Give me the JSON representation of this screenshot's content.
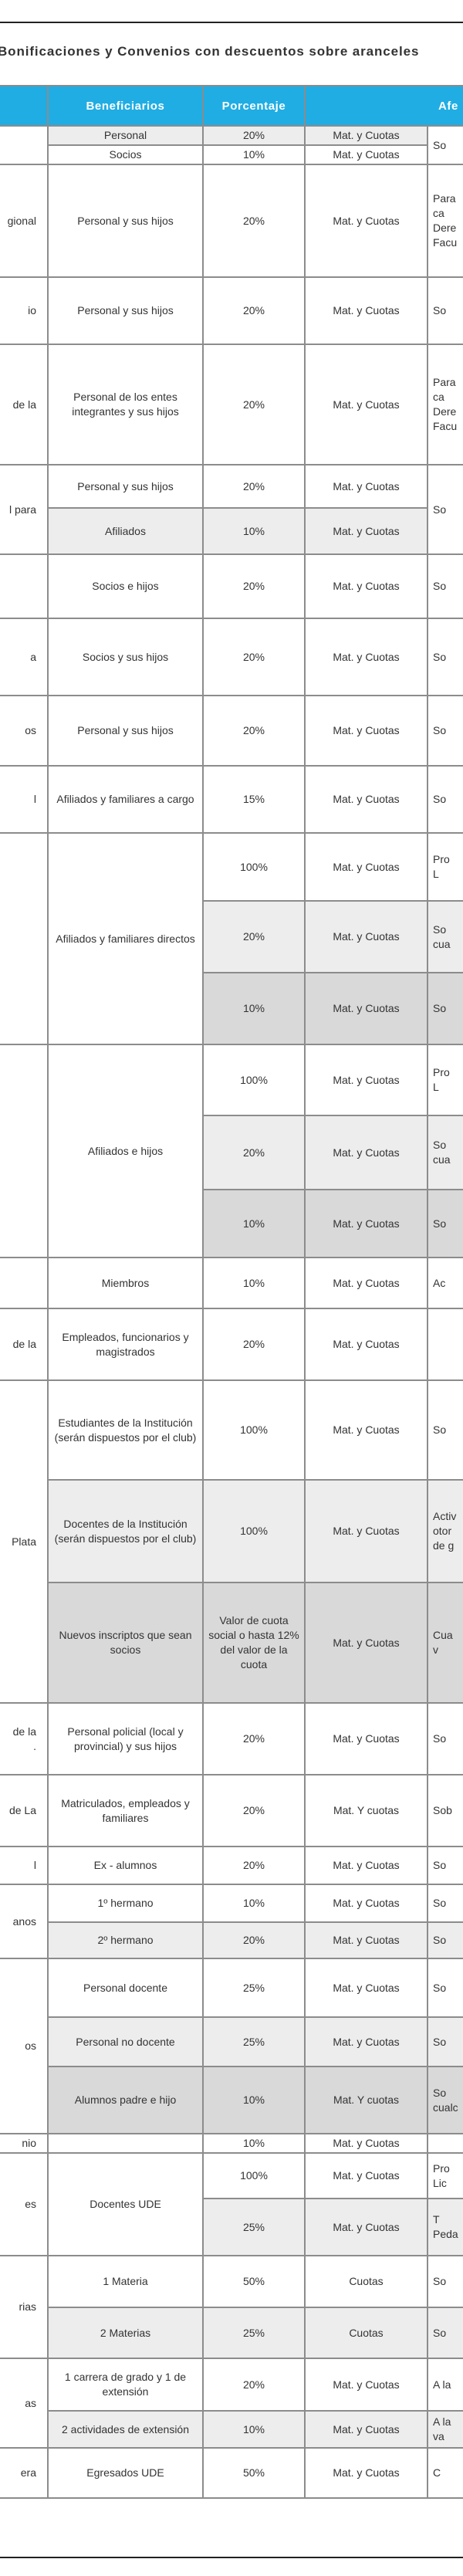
{
  "title": "Bonificaciones y Convenios con descuentos sobre aranceles",
  "colors": {
    "header_bg": "#20ade3",
    "header_text": "#ffffff",
    "light": "#ededed",
    "dark": "#d9d9d9",
    "white": "#ffffff",
    "border": "#8c8c8c"
  },
  "table": {
    "headers": [
      "",
      "Beneficiarios",
      "Porcentaje",
      "Afe"
    ],
    "groups": [
      {
        "entity": "",
        "shades": [
          "light",
          "white"
        ],
        "beneficiaries": [
          {
            "text": "Personal",
            "span": 1
          },
          {
            "text": "Socios",
            "span": 1
          }
        ],
        "percent": [
          "20%",
          "10%"
        ],
        "applies": [
          "Mat. y Cuotas",
          "Mat. y Cuotas"
        ],
        "afecta": [
          {
            "text": "So",
            "span": 2
          }
        ]
      },
      {
        "entity": "gional",
        "shades": [
          "white"
        ],
        "beneficiaries": [
          {
            "text": "Personal y sus hijos",
            "span": 1
          }
        ],
        "percent": [
          "20%"
        ],
        "applies": [
          "Mat. y Cuotas"
        ],
        "afecta": [
          {
            "text": "Para\nca\nDere\nFacu",
            "span": 1
          }
        ]
      },
      {
        "entity": "io",
        "shades": [
          "white"
        ],
        "beneficiaries": [
          {
            "text": "Personal y sus hijos",
            "span": 1
          }
        ],
        "percent": [
          "20%"
        ],
        "applies": [
          "Mat. y Cuotas"
        ],
        "afecta": [
          {
            "text": "So\n",
            "span": 1
          }
        ]
      },
      {
        "entity": "de la",
        "shades": [
          "white"
        ],
        "beneficiaries": [
          {
            "text": "Personal de los entes integrantes y sus hijos",
            "span": 1
          }
        ],
        "percent": [
          "20%"
        ],
        "applies": [
          "Mat. y Cuotas"
        ],
        "afecta": [
          {
            "text": "Para\nca\nDere\nFacu",
            "span": 1
          }
        ]
      },
      {
        "entity": "l para",
        "shades": [
          "white",
          "light"
        ],
        "beneficiaries": [
          {
            "text": "Personal y sus hijos",
            "span": 1
          },
          {
            "text": "Afiliados",
            "span": 1
          }
        ],
        "percent": [
          "20%",
          "10%"
        ],
        "applies": [
          "Mat. y   Cuotas",
          "Mat. y   Cuotas"
        ],
        "afecta": [
          {
            "text": "So",
            "span": 2
          }
        ]
      },
      {
        "entity": "",
        "shades": [
          "white"
        ],
        "beneficiaries": [
          {
            "text": "Socios e hijos",
            "span": 1
          }
        ],
        "percent": [
          "20%"
        ],
        "applies": [
          "Mat. y Cuotas"
        ],
        "afecta": [
          {
            "text": "So\n",
            "span": 1
          }
        ]
      },
      {
        "entity": "a",
        "shades": [
          "white"
        ],
        "beneficiaries": [
          {
            "text": "Socios y sus hijos",
            "span": 1
          }
        ],
        "percent": [
          "20%"
        ],
        "applies": [
          "Mat. y Cuotas"
        ],
        "afecta": [
          {
            "text": "So\n",
            "span": 1
          }
        ]
      },
      {
        "entity": "os",
        "shades": [
          "white"
        ],
        "beneficiaries": [
          {
            "text": "Personal y sus hijos",
            "span": 1
          }
        ],
        "percent": [
          "20%"
        ],
        "applies": [
          "Mat. y Cuotas"
        ],
        "afecta": [
          {
            "text": "So\n",
            "span": 1
          }
        ]
      },
      {
        "entity": "l",
        "shades": [
          "white"
        ],
        "beneficiaries": [
          {
            "text": "Afiliados y familiares a cargo",
            "span": 1
          }
        ],
        "percent": [
          "15%"
        ],
        "applies": [
          "Mat. y Cuotas"
        ],
        "afecta": [
          {
            "text": "So\n",
            "span": 1
          }
        ]
      },
      {
        "entity": "",
        "shades": [
          "white",
          "light",
          "dark"
        ],
        "beneficiaries": [
          {
            "text": "Afiliados y   familiares directos",
            "span": 3
          }
        ],
        "percent": [
          "100%",
          "20%",
          "10%"
        ],
        "applies": [
          "Mat. y Cuotas",
          "Mat. y Cuotas",
          "Mat. y Cuotas"
        ],
        "afecta": [
          {
            "text": "Pro\nL",
            "span": 1
          },
          {
            "text": "So\ncua",
            "span": 1
          },
          {
            "text": "So",
            "span": 1
          }
        ]
      },
      {
        "entity": "",
        "shades": [
          "white",
          "light",
          "dark"
        ],
        "beneficiaries": [
          {
            "text": "Afiliados e hijos",
            "span": 3
          }
        ],
        "percent": [
          "100%",
          "20%",
          "10%"
        ],
        "applies": [
          "Mat. y Cuotas",
          "Mat. y Cuotas",
          "Mat. y Cuotas"
        ],
        "afecta": [
          {
            "text": "Pro\nL",
            "span": 1
          },
          {
            "text": "So\ncua",
            "span": 1
          },
          {
            "text": "So",
            "span": 1
          }
        ]
      },
      {
        "entity": "",
        "shades": [
          "white"
        ],
        "beneficiaries": [
          {
            "text": "Miembros",
            "span": 1
          }
        ],
        "percent": [
          "10%"
        ],
        "applies": [
          "Mat. y Cuotas"
        ],
        "afecta": [
          {
            "text": "Ac",
            "span": 1
          }
        ]
      },
      {
        "entity": "de la",
        "shades": [
          "white"
        ],
        "beneficiaries": [
          {
            "text": "Empleados, funcionarios y magistrados",
            "span": 1
          }
        ],
        "percent": [
          "20%"
        ],
        "applies": [
          "Mat. y Cuotas"
        ],
        "afecta": [
          {
            "text": "",
            "span": 1
          }
        ]
      },
      {
        "entity": "Plata",
        "shades": [
          "white",
          "light",
          "dark"
        ],
        "beneficiaries": [
          {
            "text": "Estudiantes de la Institución (serán dispuestos por el club)",
            "span": 1
          },
          {
            "text": "Docentes de la Institución (serán dispuestos por el club)",
            "span": 1
          },
          {
            "text": "Nuevos inscriptos que sean socios",
            "span": 1
          }
        ],
        "percent": [
          "100%",
          "100%",
          "Valor de cuota social o hasta 12% del valor de la cuota"
        ],
        "applies": [
          "Mat. y Cuotas",
          "Mat. y Cuotas",
          "Mat. y Cuotas"
        ],
        "afecta": [
          {
            "text": "So",
            "span": 1
          },
          {
            "text": "Activ\notor\nde g",
            "span": 1
          },
          {
            "text": "Cua\nv",
            "span": 1
          }
        ]
      },
      {
        "entity": "de la\n.",
        "shades": [
          "white"
        ],
        "beneficiaries": [
          {
            "text": "Personal policial (local y provincial) y sus hijos",
            "span": 1
          }
        ],
        "percent": [
          "20%"
        ],
        "applies": [
          "Mat. y Cuotas"
        ],
        "afecta": [
          {
            "text": "So\n",
            "span": 1
          }
        ]
      },
      {
        "entity": "de La",
        "shades": [
          "white"
        ],
        "beneficiaries": [
          {
            "text": "Matriculados, empleados y familiares",
            "span": 1
          }
        ],
        "percent": [
          "20%"
        ],
        "applies": [
          "Mat. Y cuotas"
        ],
        "afecta": [
          {
            "text": "Sob",
            "span": 1
          }
        ]
      },
      {
        "entity": "l",
        "shades": [
          "white"
        ],
        "beneficiaries": [
          {
            "text": "Ex - alumnos",
            "span": 1
          }
        ],
        "percent": [
          "20%"
        ],
        "applies": [
          "Mat. y Cuotas"
        ],
        "afecta": [
          {
            "text": "So\n",
            "span": 1
          }
        ]
      },
      {
        "entity": "anos",
        "shades": [
          "white",
          "light"
        ],
        "beneficiaries": [
          {
            "text": "1º hermano",
            "span": 1
          },
          {
            "text": "2º hermano",
            "span": 1
          }
        ],
        "percent": [
          "10%",
          "20%"
        ],
        "applies": [
          "Mat. y Cuotas",
          "Mat. y Cuotas"
        ],
        "afecta": [
          {
            "text": "So\n",
            "span": 1
          },
          {
            "text": "So\n",
            "span": 1
          }
        ]
      },
      {
        "entity": "os",
        "shades": [
          "white",
          "light",
          "dark"
        ],
        "beneficiaries": [
          {
            "text": "Personal docente",
            "span": 1
          },
          {
            "text": "Personal no docente",
            "span": 1
          },
          {
            "text": "Alumnos padre e hijo",
            "span": 1
          }
        ],
        "percent": [
          "25%",
          "25%",
          "10%"
        ],
        "applies": [
          "Mat. y Cuotas",
          "Mat. y Cuotas",
          "Mat. Y cuotas"
        ],
        "afecta": [
          {
            "text": "So\n",
            "span": 1
          },
          {
            "text": "So",
            "span": 1
          },
          {
            "text": "So\ncualc",
            "span": 1
          }
        ]
      },
      {
        "entity": "nio",
        "shades": [
          "white"
        ],
        "beneficiaries": [
          {
            "text": "",
            "span": 1
          }
        ],
        "percent": [
          "10%"
        ],
        "applies": [
          "Mat. y Cuotas"
        ],
        "afecta": [
          {
            "text": "",
            "span": 1
          }
        ]
      },
      {
        "entity": "es",
        "shades": [
          "white",
          "light"
        ],
        "beneficiaries": [
          {
            "text": "Docentes UDE",
            "span": 2
          }
        ],
        "percent": [
          "100%",
          "25%"
        ],
        "applies": [
          "Mat. y Cuotas",
          "Mat. y Cuotas"
        ],
        "afecta": [
          {
            "text": "Pro\nLic",
            "span": 1
          },
          {
            "text": "T\nPeda",
            "span": 1
          }
        ]
      },
      {
        "entity": "rias",
        "shades": [
          "white",
          "light"
        ],
        "beneficiaries": [
          {
            "text": "1 Materia",
            "span": 1
          },
          {
            "text": "2 Materias",
            "span": 1
          }
        ],
        "percent": [
          "50%",
          "25%"
        ],
        "applies": [
          "Cuotas",
          "Cuotas"
        ],
        "afecta": [
          {
            "text": "So\n",
            "span": 1
          },
          {
            "text": "So\n",
            "span": 1
          }
        ]
      },
      {
        "entity": "as",
        "shades": [
          "white",
          "light"
        ],
        "beneficiaries": [
          {
            "text": "1 carrera de grado y 1 de extensión",
            "span": 1
          },
          {
            "text": "2 actividades de extensión",
            "span": 1
          }
        ],
        "percent": [
          "20%",
          "10%"
        ],
        "applies": [
          "Mat. y Cuotas",
          "Mat. y Cuotas"
        ],
        "afecta": [
          {
            "text": "A la",
            "span": 1
          },
          {
            "text": "A la\nva",
            "span": 1
          }
        ]
      },
      {
        "entity": "era",
        "shades": [
          "white"
        ],
        "beneficiaries": [
          {
            "text": "Egresados UDE",
            "span": 1
          }
        ],
        "percent": [
          "50%"
        ],
        "applies": [
          "Mat. y Cuotas"
        ],
        "afecta": [
          {
            "text": "C\n",
            "span": 1
          }
        ]
      }
    ]
  }
}
